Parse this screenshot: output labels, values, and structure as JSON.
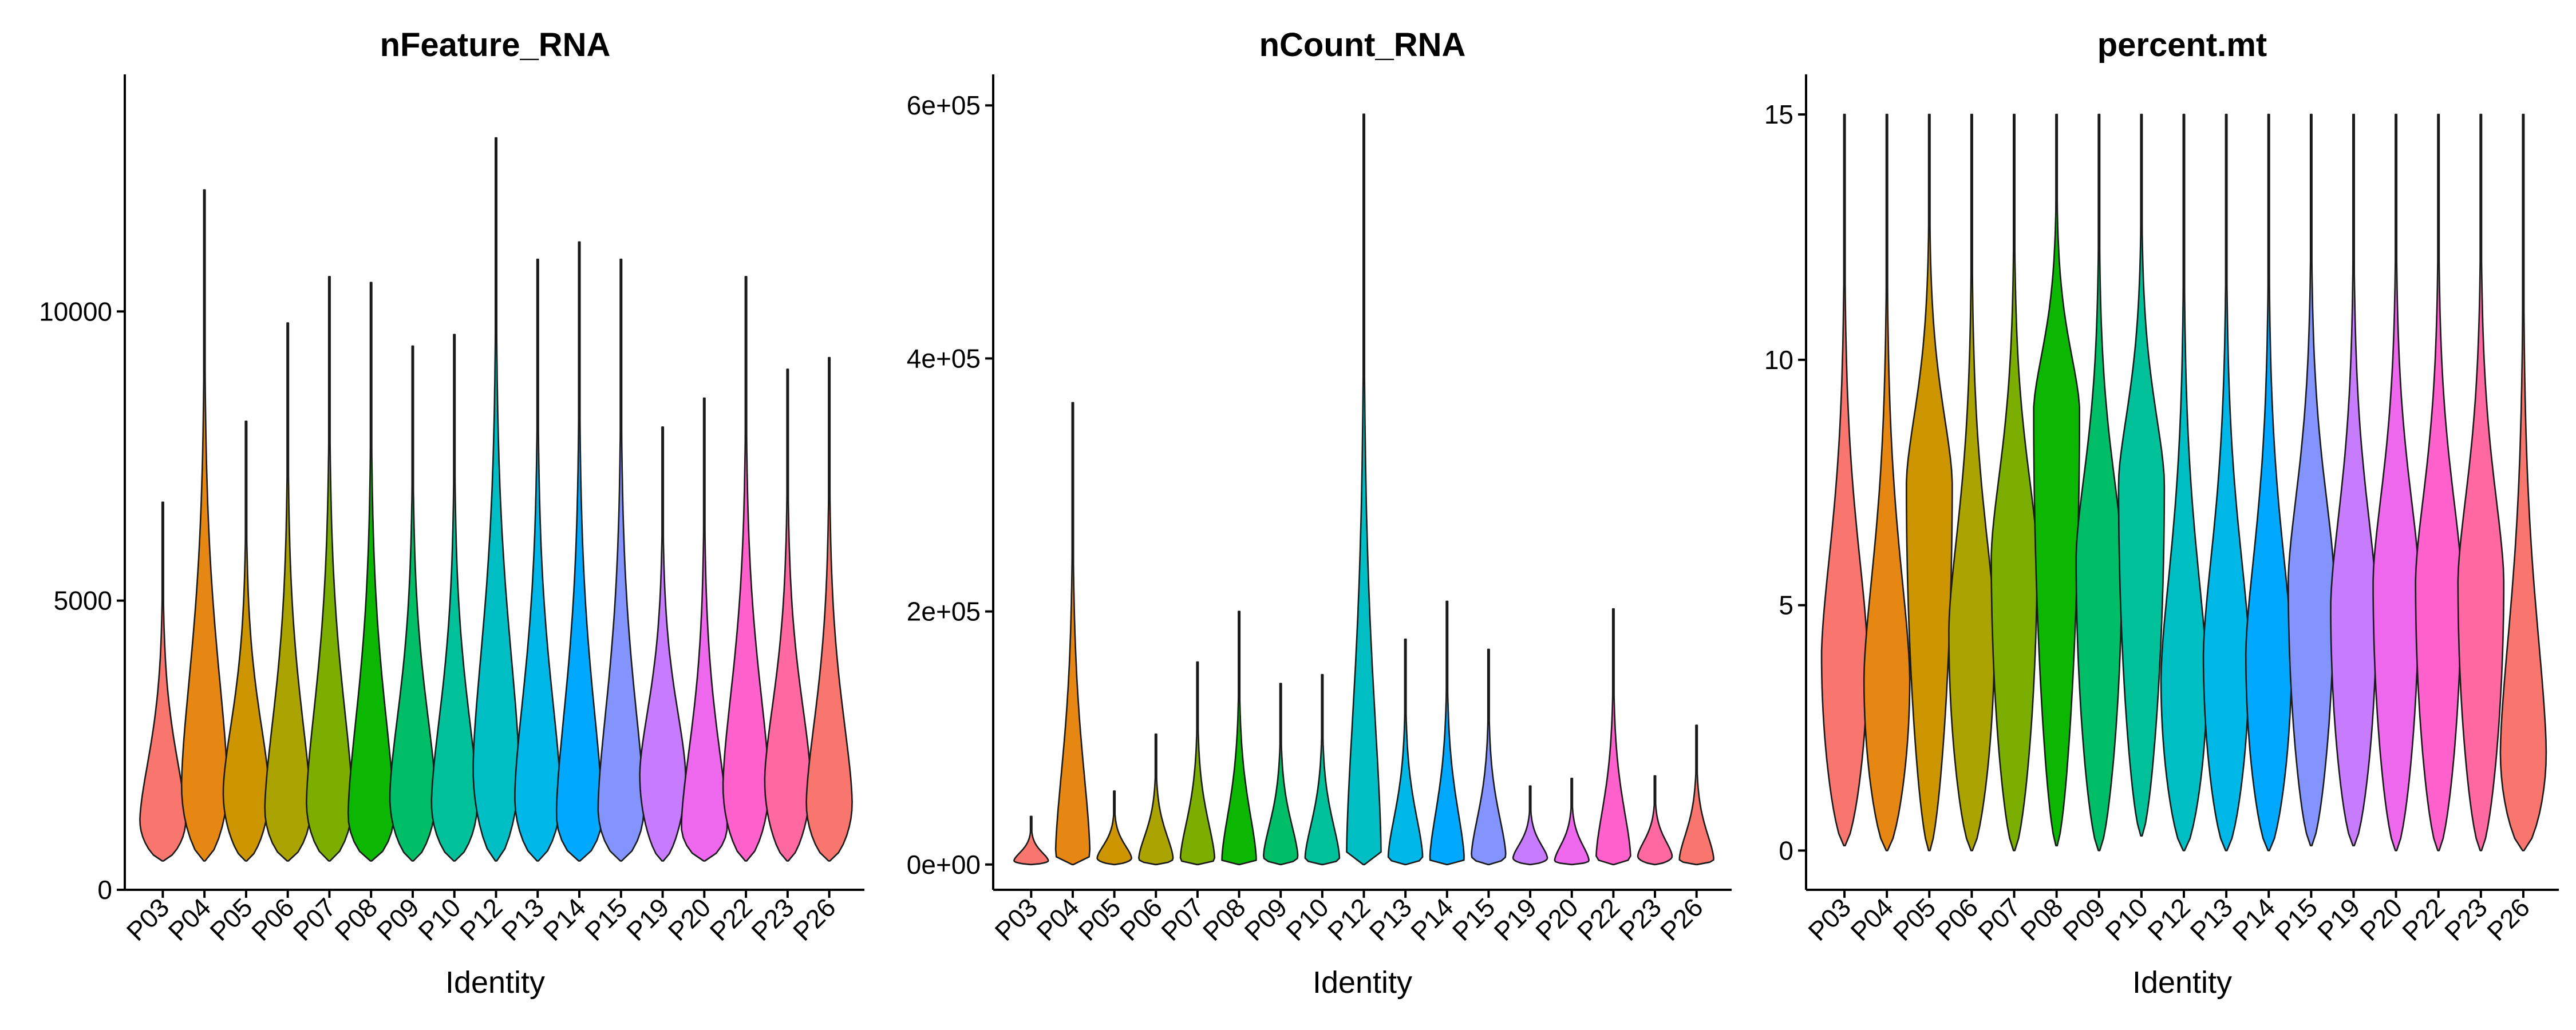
{
  "chart_data": [
    {
      "type": "violin",
      "title": "nFeature_RNA",
      "xlabel": "Identity",
      "ylabel": "",
      "ylim": [
        0,
        14000
      ],
      "yticks": [
        0,
        5000,
        10000
      ],
      "ytick_labels": [
        "0",
        "5000",
        "10000"
      ],
      "categories": [
        "P03",
        "P04",
        "P05",
        "P06",
        "P07",
        "P08",
        "P09",
        "P10",
        "P12",
        "P13",
        "P14",
        "P15",
        "P19",
        "P20",
        "P22",
        "P23",
        "P26"
      ],
      "colors": [
        "#F8766D",
        "#E68613",
        "#CD9600",
        "#ABA300",
        "#7CAE00",
        "#0CB702",
        "#00BE67",
        "#00C19A",
        "#00BFC4",
        "#00B8E7",
        "#00A9FF",
        "#8494FF",
        "#C77CFF",
        "#ED68ED",
        "#FF61CC",
        "#FF68A1",
        "#F8766D"
      ],
      "min": [
        500,
        500,
        500,
        500,
        500,
        500,
        500,
        500,
        500,
        500,
        500,
        500,
        500,
        500,
        500,
        500,
        500
      ],
      "median": [
        1200,
        1800,
        1700,
        1400,
        1500,
        1300,
        1600,
        1500,
        2100,
        1600,
        1300,
        1400,
        2000,
        1100,
        1800,
        1900,
        1500
      ],
      "max": [
        6700,
        12100,
        8100,
        9800,
        10600,
        10500,
        9400,
        9600,
        13000,
        10900,
        11200,
        10900,
        8000,
        8500,
        10600,
        9000,
        9200
      ]
    },
    {
      "type": "violin",
      "title": "nCount_RNA",
      "xlabel": "Identity",
      "ylabel": "",
      "ylim": [
        -20000,
        620000
      ],
      "yticks": [
        0,
        200000,
        400000,
        600000
      ],
      "ytick_labels": [
        "0e+00",
        "2e+05",
        "4e+05",
        "6e+05"
      ],
      "categories": [
        "P03",
        "P04",
        "P05",
        "P06",
        "P07",
        "P08",
        "P09",
        "P10",
        "P12",
        "P13",
        "P14",
        "P15",
        "P19",
        "P20",
        "P22",
        "P23",
        "P26"
      ],
      "colors": [
        "#F8766D",
        "#E68613",
        "#CD9600",
        "#ABA300",
        "#7CAE00",
        "#0CB702",
        "#00BE67",
        "#00C19A",
        "#00BFC4",
        "#00B8E7",
        "#00A9FF",
        "#8494FF",
        "#C77CFF",
        "#ED68ED",
        "#FF61CC",
        "#FF68A1",
        "#F8766D"
      ],
      "min": [
        0,
        0,
        0,
        0,
        0,
        0,
        0,
        0,
        0,
        0,
        0,
        0,
        0,
        0,
        0,
        0,
        0
      ],
      "median": [
        3000,
        8000,
        5000,
        4500,
        4000,
        3500,
        6000,
        5000,
        9000,
        6000,
        4000,
        7000,
        5000,
        3000,
        6000,
        6500,
        4000
      ],
      "max": [
        38000,
        365000,
        58000,
        103000,
        160000,
        200000,
        143000,
        150000,
        593000,
        178000,
        208000,
        170000,
        62000,
        68000,
        202000,
        70000,
        110000
      ]
    },
    {
      "type": "violin",
      "title": "percent.mt",
      "xlabel": "Identity",
      "ylabel": "",
      "ylim": [
        -0.8,
        15.7
      ],
      "yticks": [
        0,
        5,
        10,
        15
      ],
      "ytick_labels": [
        "0",
        "5",
        "10",
        "15"
      ],
      "categories": [
        "P03",
        "P04",
        "P05",
        "P06",
        "P07",
        "P08",
        "P09",
        "P10",
        "P12",
        "P13",
        "P14",
        "P15",
        "P19",
        "P20",
        "P22",
        "P23",
        "P26"
      ],
      "colors": [
        "#F8766D",
        "#E68613",
        "#CD9600",
        "#ABA300",
        "#7CAE00",
        "#0CB702",
        "#00BE67",
        "#00C19A",
        "#00BFC4",
        "#00B8E7",
        "#00A9FF",
        "#8494FF",
        "#C77CFF",
        "#ED68ED",
        "#FF61CC",
        "#FF68A1",
        "#F8766D"
      ],
      "min": [
        0.1,
        0,
        0,
        0,
        0,
        0.1,
        0,
        0.3,
        0,
        0,
        0,
        0.1,
        0.1,
        0,
        0,
        0,
        0
      ],
      "median": [
        4,
        3.5,
        7.5,
        4.5,
        6,
        9,
        6,
        7.5,
        3.5,
        4,
        4,
        5.5,
        5,
        5.5,
        5.5,
        5.5,
        2
      ],
      "max": [
        15,
        15,
        15,
        15,
        15,
        15,
        15,
        15,
        15,
        15,
        15,
        15,
        15,
        15,
        15,
        15,
        15
      ]
    }
  ]
}
